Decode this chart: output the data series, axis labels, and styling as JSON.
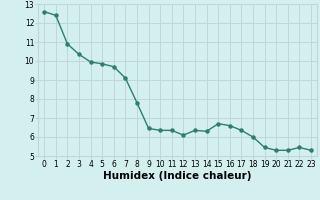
{
  "x": [
    0,
    1,
    2,
    3,
    4,
    5,
    6,
    7,
    8,
    9,
    10,
    11,
    12,
    13,
    14,
    15,
    16,
    17,
    18,
    19,
    20,
    21,
    22,
    23
  ],
  "y": [
    12.6,
    12.4,
    10.9,
    10.35,
    9.95,
    9.85,
    9.7,
    9.1,
    7.8,
    6.45,
    6.35,
    6.35,
    6.1,
    6.35,
    6.3,
    6.7,
    6.6,
    6.35,
    6.0,
    5.45,
    5.3,
    5.3,
    5.45,
    5.3
  ],
  "title": "",
  "xlabel": "Humidex (Indice chaleur)",
  "ylabel": "",
  "xlim": [
    -0.5,
    23.5
  ],
  "ylim": [
    5,
    13
  ],
  "yticks": [
    5,
    6,
    7,
    8,
    9,
    10,
    11,
    12,
    13
  ],
  "xticks": [
    0,
    1,
    2,
    3,
    4,
    5,
    6,
    7,
    8,
    9,
    10,
    11,
    12,
    13,
    14,
    15,
    16,
    17,
    18,
    19,
    20,
    21,
    22,
    23
  ],
  "line_color": "#2e7d6e",
  "marker": "o",
  "marker_size": 2.2,
  "line_width": 1.0,
  "bg_color": "#d4f0ee",
  "grid_color": "#c0d8d5",
  "tick_label_fontsize": 5.5,
  "xlabel_fontsize": 7.5
}
